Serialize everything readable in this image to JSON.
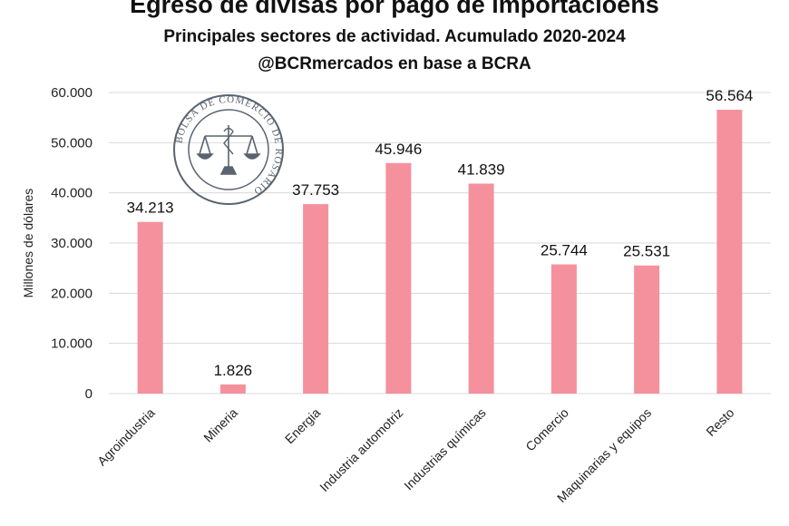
{
  "chart_data": {
    "type": "bar",
    "title": "Egreso de divisas por pago de importacioens",
    "subtitle": "Principales sectores de actividad. Acumulado 2020-2024",
    "source": "@BCRmercados en base a BCRA",
    "xlabel": "",
    "ylabel": "Millones de dólares",
    "ylim": [
      0,
      60000
    ],
    "yticks": [
      0,
      10000,
      20000,
      30000,
      40000,
      50000,
      60000
    ],
    "ytick_labels": [
      "0",
      "10.000",
      "20.000",
      "30.000",
      "40.000",
      "50.000",
      "60.000"
    ],
    "grid": true,
    "bar_color": "#F4919D",
    "categories": [
      "Agroindustria",
      "Mineria",
      "Energia",
      "Industria automotriz",
      "Industrias químicas",
      "Comercio",
      "Maquinarias y equipos",
      "Resto"
    ],
    "values": [
      34213,
      1826,
      37753,
      45946,
      41839,
      25744,
      25531,
      56564
    ],
    "data_labels": [
      "34.213",
      "1.826",
      "37.753",
      "45.946",
      "41.839",
      "25.744",
      "25.531",
      "56.564"
    ]
  },
  "watermark": {
    "text": "BOLSA DE COMERCIO DE ROSARIO"
  }
}
